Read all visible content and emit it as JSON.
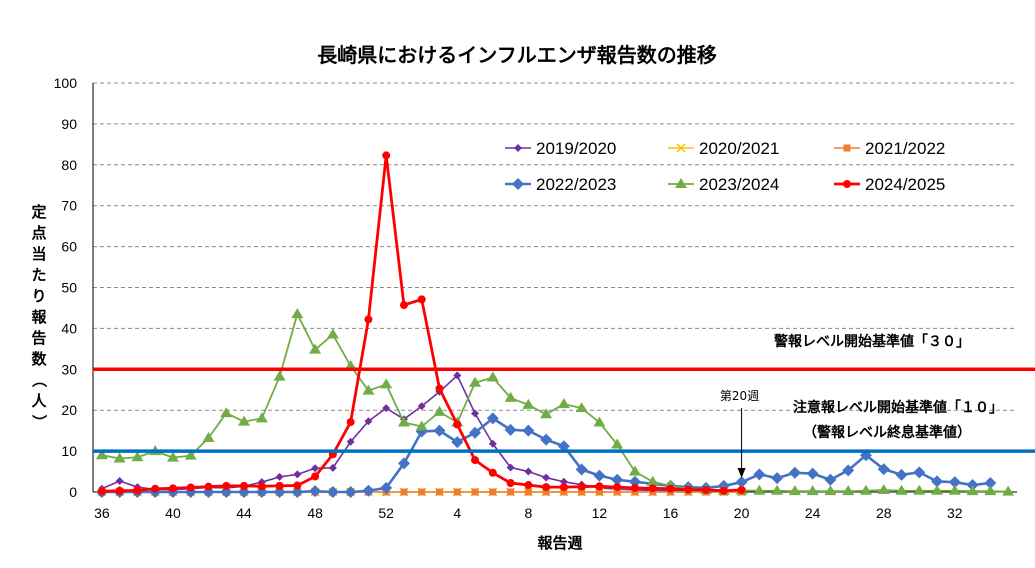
{
  "chart_data": {
    "type": "line",
    "title": "長崎県におけるインフルエンザ報告数の推移",
    "xlabel": "報告週",
    "ylabel": "定点当たり報告数（人）",
    "ylim": [
      0,
      100
    ],
    "yticks": [
      "0",
      "10",
      "20",
      "30",
      "40",
      "50",
      "60",
      "70",
      "80",
      "90",
      "100"
    ],
    "grid": "horizontal dashed",
    "legend_position": "top-right",
    "x": [
      "36",
      "37",
      "38",
      "39",
      "40",
      "41",
      "42",
      "43",
      "44",
      "45",
      "46",
      "47",
      "48",
      "49",
      "50",
      "51",
      "52",
      "1",
      "2",
      "3",
      "4",
      "5",
      "6",
      "7",
      "8",
      "9",
      "10",
      "11",
      "12",
      "13",
      "14",
      "15",
      "16",
      "17",
      "18",
      "19",
      "20",
      "21",
      "22",
      "23",
      "24",
      "25",
      "26",
      "27",
      "28",
      "29",
      "30",
      "31",
      "32",
      "33",
      "34",
      "35"
    ],
    "xtick_labels": [
      "36",
      "40",
      "44",
      "48",
      "52",
      "4",
      "8",
      "12",
      "16",
      "20",
      "24",
      "28",
      "32"
    ],
    "series": [
      {
        "name": "2019/2020",
        "color": "#7030a0",
        "marker": "diamond-small",
        "values": [
          0.8,
          2.7,
          1.2,
          0.6,
          0.6,
          0.8,
          1.1,
          1.0,
          1.4,
          2.4,
          3.7,
          4.3,
          5.8,
          5.9,
          12.3,
          17.3,
          20.5,
          17.8,
          21.0,
          24.5,
          28.5,
          19.2,
          11.8,
          6.0,
          5.0,
          3.5,
          2.5,
          1.8,
          1.0,
          0.7,
          0.5,
          0.4,
          0.3,
          0.2,
          0.2,
          0.1,
          0.1,
          null,
          null,
          null,
          null,
          null,
          null,
          null,
          null,
          null,
          null,
          null,
          null,
          null,
          null,
          null
        ]
      },
      {
        "name": "2020/2021",
        "color": "#ffc000",
        "marker": "x",
        "values": [
          0,
          0,
          0,
          0,
          0,
          0,
          0,
          0,
          0,
          0,
          0,
          0,
          0,
          0,
          0,
          0,
          0,
          0,
          0,
          0,
          0,
          0,
          0,
          0,
          0,
          0,
          0,
          0,
          0,
          0,
          0,
          0,
          0,
          0,
          0,
          0,
          0,
          null,
          null,
          null,
          null,
          null,
          null,
          null,
          null,
          null,
          null,
          null,
          null,
          null,
          null,
          null
        ]
      },
      {
        "name": "2021/2022",
        "color": "#ed7d31",
        "marker": "square",
        "values": [
          0,
          0,
          0,
          0,
          0,
          0,
          0,
          0,
          0,
          0,
          0,
          0,
          0,
          0,
          0,
          0,
          0,
          0,
          0,
          0,
          0,
          0,
          0,
          0,
          0,
          0,
          0,
          0,
          0,
          0,
          0,
          0,
          0,
          0,
          0,
          0,
          0,
          null,
          null,
          null,
          null,
          null,
          null,
          null,
          null,
          null,
          null,
          null,
          null,
          null,
          null,
          null
        ]
      },
      {
        "name": "2022/2023",
        "color": "#4472c4",
        "marker": "diamond",
        "values": [
          0,
          0,
          0,
          0,
          0,
          0,
          0,
          0,
          0,
          0,
          0,
          0,
          0.2,
          0,
          0,
          0.3,
          1.0,
          7.0,
          14.8,
          15.0,
          12.2,
          14.5,
          18.0,
          15.2,
          15.0,
          12.8,
          11.2,
          5.5,
          4.0,
          3.0,
          2.5,
          2.0,
          1.5,
          1.2,
          1.0,
          1.5,
          2.4,
          4.3,
          3.4,
          4.7,
          4.5,
          3.0,
          5.3,
          9.0,
          5.6,
          4.2,
          4.8,
          2.6,
          2.4,
          1.7,
          2.2,
          null
        ]
      },
      {
        "name": "2023/2024",
        "color": "#70ad47",
        "marker": "triangle",
        "values": [
          9.0,
          8.2,
          8.5,
          10.0,
          8.4,
          8.9,
          13.2,
          19.3,
          17.2,
          18.0,
          28.2,
          43.5,
          34.8,
          38.5,
          30.8,
          24.8,
          26.3,
          17.0,
          16.0,
          19.6,
          17.0,
          26.7,
          28.0,
          23.0,
          21.3,
          19.0,
          21.5,
          20.5,
          17.0,
          11.6,
          5.0,
          2.5,
          1.5,
          0.8,
          0.5,
          0.3,
          0.4,
          0.3,
          0.3,
          0.2,
          0.2,
          0.2,
          0.2,
          0.3,
          0.5,
          0.3,
          0.3,
          0.3,
          0.3,
          0.2,
          0.2,
          0.1
        ]
      },
      {
        "name": "2024/2025",
        "color": "#ff0000",
        "marker": "circle",
        "values": [
          0.2,
          0.3,
          0.4,
          0.8,
          0.9,
          1.1,
          1.3,
          1.5,
          1.5,
          1.4,
          1.5,
          1.6,
          3.8,
          9.2,
          17.1,
          42.2,
          82.3,
          45.7,
          47.1,
          25.3,
          16.5,
          7.8,
          4.7,
          2.2,
          1.7,
          1.2,
          1.2,
          1.3,
          1.4,
          1.2,
          1.0,
          0.9,
          0.8,
          0.6,
          0.5,
          0.3,
          0.5,
          null,
          null,
          null,
          null,
          null,
          null,
          null,
          null,
          null,
          null,
          null,
          null,
          null,
          null,
          null
        ]
      }
    ],
    "reference_lines": [
      {
        "value": 30,
        "color": "#ff0000",
        "label": "警報レベル開始基準値「３０」"
      },
      {
        "value": 10,
        "color": "#0070c0",
        "label": "注意報レベル開始基準値「１０」",
        "sublabel": "（警報レベル終息基準値）"
      }
    ],
    "annotations": [
      {
        "text": "第20週",
        "at_week": "20"
      }
    ]
  }
}
